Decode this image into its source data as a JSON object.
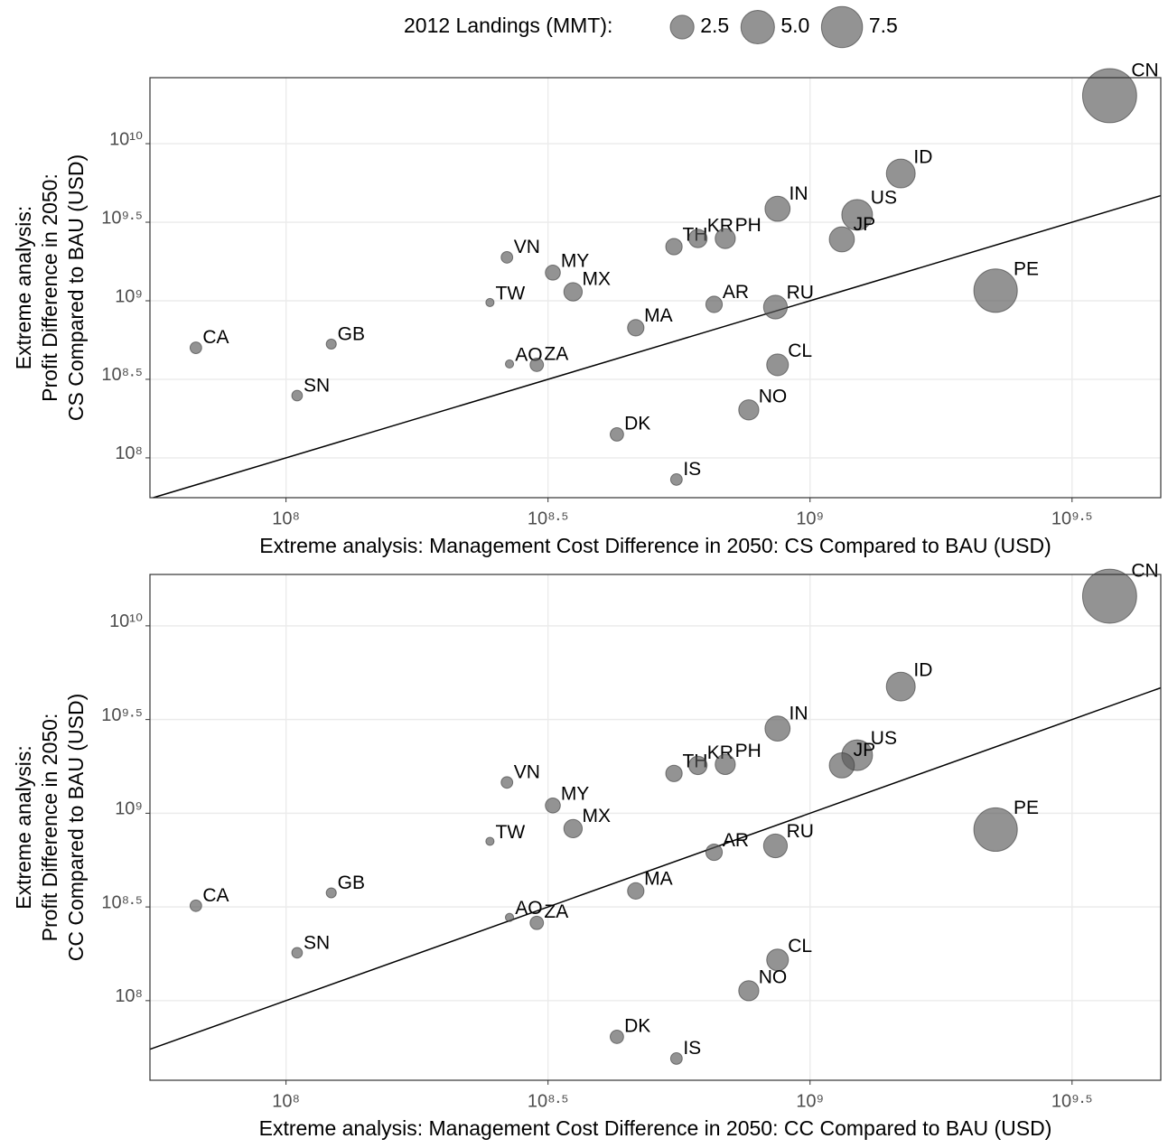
{
  "chart_data": [
    {
      "type": "scatter",
      "xscale": "log",
      "yscale": "log",
      "grid": true,
      "color": "#595959",
      "opacity": 0.65,
      "size_legend": {
        "title": "2012 Landings (MMT):",
        "sizes": [
          2.5,
          {
            "value": 5,
            "label": "5.0"
          },
          7.5
        ]
      },
      "xlabel": "Extreme analysis: Management Cost Difference in 2050: CS Compared to BAU (USD)",
      "ylabel": [
        "Extreme analysis:",
        "Profit Difference in 2050:",
        "CS Compared to BAU (USD)"
      ],
      "xlim": [
        55000000,
        4670000000
      ],
      "ylim": [
        55800000,
        26300000000
      ],
      "xticks": [
        {
          "value": 100000000,
          "label": "10⁸"
        },
        {
          "value": 316227766,
          "label": "10⁸·⁵"
        },
        {
          "value": 1000000000,
          "label": "10⁹"
        },
        {
          "value": 3162277660,
          "label": "10⁹·⁵"
        }
      ],
      "yticks": [
        {
          "value": 100000000,
          "label": "10⁸"
        },
        {
          "value": 316227766,
          "label": "10⁸·⁵"
        },
        {
          "value": 1000000000,
          "label": "10⁹"
        },
        {
          "value": 3162277660,
          "label": "10⁹·⁵"
        },
        {
          "value": 10000000000,
          "label": "10¹⁰"
        }
      ],
      "labels": [
        "CA",
        "GB",
        "SN",
        "VN",
        "MY",
        "MX",
        "TW",
        "AO",
        "ZA",
        "MA",
        "DK",
        "IS",
        "TH",
        "KR",
        "PH",
        "AR",
        "RU",
        "CL",
        "NO",
        "IN",
        "US",
        "JP",
        "ID",
        "PE",
        "CN"
      ],
      "x": [
        67300000,
        122000000,
        105000000,
        264000000,
        323000000,
        353000000,
        245000000,
        267000000,
        301000000,
        465000000,
        428000000,
        556000000,
        550000000,
        611000000,
        689000000,
        656000000,
        859000000,
        867000000,
        764000000,
        867000000,
        1230000000,
        1150000000,
        1490000000,
        2260000000,
        3730000000
      ],
      "y": [
        502000000,
        530000000,
        249000000,
        1890000000,
        1510000000,
        1140000000,
        975000000,
        396000000,
        391000000,
        673000000,
        141000000,
        72800000,
        2210000000,
        2490000000,
        2490000000,
        948000000,
        912000000,
        391000000,
        202000000,
        3850000000,
        3520000000,
        2460000000,
        6460000000,
        1160000000,
        20200000000
      ],
      "sizes": [
        0.6,
        0.45,
        0.5,
        0.6,
        1.0,
        1.5,
        0.3,
        0.3,
        0.8,
        1.2,
        0.8,
        0.6,
        1.2,
        1.5,
        1.8,
        1.2,
        2.5,
        2.1,
        1.8,
        2.8,
        4.2,
        2.8,
        3.7,
        8.4,
        13
      ]
    },
    {
      "type": "scatter",
      "xscale": "log",
      "yscale": "log",
      "grid": true,
      "color": "#595959",
      "opacity": 0.65,
      "xlabel": "Extreme analysis: Management Cost Difference in 2050: CC Compared to BAU (USD)",
      "ylabel": [
        "Extreme analysis:",
        "Profit Difference in 2050:",
        "CC Compared to BAU (USD)"
      ],
      "xlim": [
        55000000,
        4670000000
      ],
      "ylim": [
        37600000,
        18800000000
      ],
      "xticks": [
        {
          "value": 100000000,
          "label": "10⁸"
        },
        {
          "value": 316227766,
          "label": "10⁸·⁵"
        },
        {
          "value": 1000000000,
          "label": "10⁹"
        },
        {
          "value": 3162277660,
          "label": "10⁹·⁵"
        }
      ],
      "yticks": [
        {
          "value": 100000000,
          "label": "10⁸"
        },
        {
          "value": 316227766,
          "label": "10⁸·⁵"
        },
        {
          "value": 1000000000,
          "label": "10⁹"
        },
        {
          "value": 3162277660,
          "label": "10⁹·⁵"
        },
        {
          "value": 10000000000,
          "label": "10¹⁰"
        }
      ],
      "labels": [
        "CA",
        "GB",
        "SN",
        "VN",
        "MY",
        "MX",
        "TW",
        "AO",
        "ZA",
        "MA",
        "DK",
        "IS",
        "TH",
        "KR",
        "PH",
        "AR",
        "RU",
        "CL",
        "NO",
        "IN",
        "US",
        "JP",
        "ID",
        "PE",
        "CN"
      ],
      "x": [
        67300000,
        122000000,
        105000000,
        264000000,
        323000000,
        353000000,
        245000000,
        267000000,
        301000000,
        465000000,
        428000000,
        556000000,
        550000000,
        611000000,
        689000000,
        656000000,
        859000000,
        867000000,
        764000000,
        867000000,
        1230000000,
        1150000000,
        1490000000,
        2260000000,
        3730000000
      ],
      "y": [
        321000000,
        376000000,
        180000000,
        1460000000,
        1100000000,
        828000000,
        708000000,
        278000000,
        260000000,
        385000000,
        64100000,
        49100000,
        1630000000,
        1800000000,
        1820000000,
        619000000,
        670000000,
        165000000,
        113000000,
        2830000000,
        2040000000,
        1800000000,
        4740000000,
        818000000,
        14400000000
      ],
      "sizes": [
        0.6,
        0.45,
        0.5,
        0.6,
        1.0,
        1.5,
        0.3,
        0.3,
        0.8,
        1.2,
        0.8,
        0.6,
        1.2,
        1.5,
        1.8,
        1.2,
        2.5,
        2.1,
        1.8,
        2.8,
        4.2,
        2.8,
        3.7,
        8.4,
        13
      ]
    }
  ]
}
